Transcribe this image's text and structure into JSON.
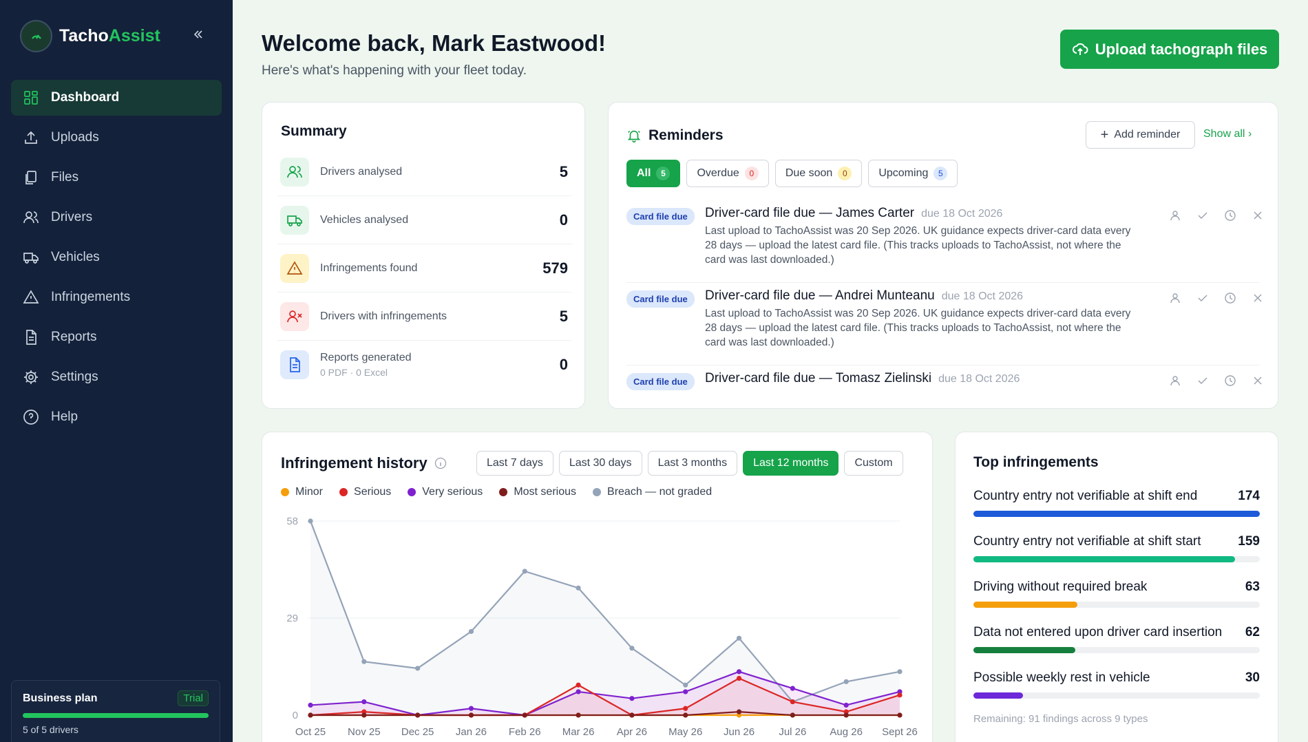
{
  "brand": {
    "name_part1": "Tacho",
    "name_part2": "Assist"
  },
  "nav": [
    {
      "label": "Dashboard",
      "icon": "grid-icon",
      "active": true
    },
    {
      "label": "Uploads",
      "icon": "upload-icon"
    },
    {
      "label": "Files",
      "icon": "files-icon"
    },
    {
      "label": "Drivers",
      "icon": "users-icon"
    },
    {
      "label": "Vehicles",
      "icon": "truck-icon"
    },
    {
      "label": "Infringements",
      "icon": "warning-icon"
    },
    {
      "label": "Reports",
      "icon": "report-icon"
    },
    {
      "label": "Settings",
      "icon": "gear-icon"
    },
    {
      "label": "Help",
      "icon": "help-icon"
    }
  ],
  "plan": {
    "name": "Business plan",
    "badge": "Trial",
    "usage": "5 of 5 drivers",
    "usage_fraction": 1.0
  },
  "header": {
    "welcome": "Welcome back, Mark Eastwood!",
    "subtitle": "Here's what's happening with your fleet today.",
    "upload_label": "Upload tachograph files"
  },
  "summary": {
    "title": "Summary",
    "rows": [
      {
        "label": "Drivers analysed",
        "value": "5",
        "icon": "users-icon",
        "color": "#e7f6ec",
        "icon_color": "#16a34a"
      },
      {
        "label": "Vehicles analysed",
        "value": "0",
        "icon": "truck-icon",
        "color": "#e7f6ec",
        "icon_color": "#16a34a"
      },
      {
        "label": "Infringements found",
        "value": "579",
        "icon": "warning-icon",
        "color": "#fdf3c7",
        "icon_color": "#b45309"
      },
      {
        "label": "Drivers with infringements",
        "value": "5",
        "icon": "user-x-icon",
        "color": "#fde7e7",
        "icon_color": "#dc2626"
      },
      {
        "label": "Reports generated",
        "sub": "0 PDF · 0 Excel",
        "value": "0",
        "icon": "report-icon",
        "color": "#dfeafc",
        "icon_color": "#2563eb"
      }
    ]
  },
  "reminders": {
    "title": "Reminders",
    "add_label": "Add reminder",
    "show_all": "Show all",
    "filters": [
      {
        "label": "All",
        "count": "5",
        "style": "green",
        "active": true
      },
      {
        "label": "Overdue",
        "count": "0",
        "style": "red"
      },
      {
        "label": "Due soon",
        "count": "0",
        "style": "yellow"
      },
      {
        "label": "Upcoming",
        "count": "5",
        "style": "blue"
      }
    ],
    "items": [
      {
        "tag": "Card file due",
        "title": "Driver-card file due — James Carter",
        "due": "due 18 Oct 2026",
        "body": "Last upload to TachoAssist was 20 Sep 2026. UK guidance expects driver-card data every 28 days — upload the latest card file. (This tracks uploads to TachoAssist, not where the card was last downloaded.)"
      },
      {
        "tag": "Card file due",
        "title": "Driver-card file due — Andrei Munteanu",
        "due": "due 18 Oct 2026",
        "body": "Last upload to TachoAssist was 20 Sep 2026. UK guidance expects driver-card data every 28 days — upload the latest card file. (This tracks uploads to TachoAssist, not where the card was last downloaded.)"
      },
      {
        "tag": "Card file due",
        "title": "Driver-card file due — Tomasz Zielinski",
        "due": "due 18 Oct 2026",
        "body": ""
      }
    ]
  },
  "history": {
    "title": "Infringement history",
    "ranges": [
      {
        "label": "Last 7 days"
      },
      {
        "label": "Last 30 days"
      },
      {
        "label": "Last 3 months"
      },
      {
        "label": "Last 12 months",
        "active": true
      },
      {
        "label": "Custom"
      }
    ]
  },
  "chart_data": {
    "type": "line",
    "categories": [
      "Oct 25",
      "Nov 25",
      "Dec 25",
      "Jan 26",
      "Feb 26",
      "Mar 26",
      "Apr 26",
      "May 26",
      "Jun 26",
      "Jul 26",
      "Aug 26",
      "Sept 26"
    ],
    "yticks": [
      0,
      29,
      58
    ],
    "ylim": [
      0,
      58
    ],
    "grid": true,
    "legend_position": "top",
    "series": [
      {
        "name": "Minor",
        "color": "#f59e0b",
        "values": [
          0,
          0,
          0,
          0,
          0,
          0,
          0,
          0,
          0,
          0,
          0,
          0
        ]
      },
      {
        "name": "Serious",
        "color": "#dc2626",
        "values": [
          0,
          1,
          0,
          0,
          0,
          9,
          0,
          2,
          11,
          4,
          1,
          6
        ]
      },
      {
        "name": "Very serious",
        "color": "#7e22ce",
        "values": [
          3,
          4,
          0,
          2,
          0,
          7,
          5,
          7,
          13,
          8,
          3,
          7
        ]
      },
      {
        "name": "Most serious",
        "color": "#7f1d1d",
        "values": [
          0,
          0,
          0,
          0,
          0,
          0,
          0,
          0,
          1,
          0,
          0,
          0
        ]
      },
      {
        "name": "Breach — not graded",
        "color": "#94a3b8",
        "values": [
          58,
          16,
          14,
          25,
          43,
          38,
          20,
          9,
          23,
          4,
          10,
          13
        ]
      }
    ]
  },
  "top": {
    "title": "Top infringements",
    "rows": [
      {
        "label": "Country entry not verifiable at shift end",
        "value": "174",
        "fraction": 1.0,
        "color": "#1d5ad8"
      },
      {
        "label": "Country entry not verifiable at shift start",
        "value": "159",
        "fraction": 0.914,
        "color": "#10b981"
      },
      {
        "label": "Driving without required break",
        "value": "63",
        "fraction": 0.362,
        "color": "#f59e0b"
      },
      {
        "label": "Data not entered upon driver card insertion",
        "value": "62",
        "fraction": 0.356,
        "color": "#15803d"
      },
      {
        "label": "Possible weekly rest in vehicle",
        "value": "30",
        "fraction": 0.172,
        "color": "#6d28d9"
      }
    ],
    "remaining": "Remaining: 91 findings across 9 types"
  }
}
